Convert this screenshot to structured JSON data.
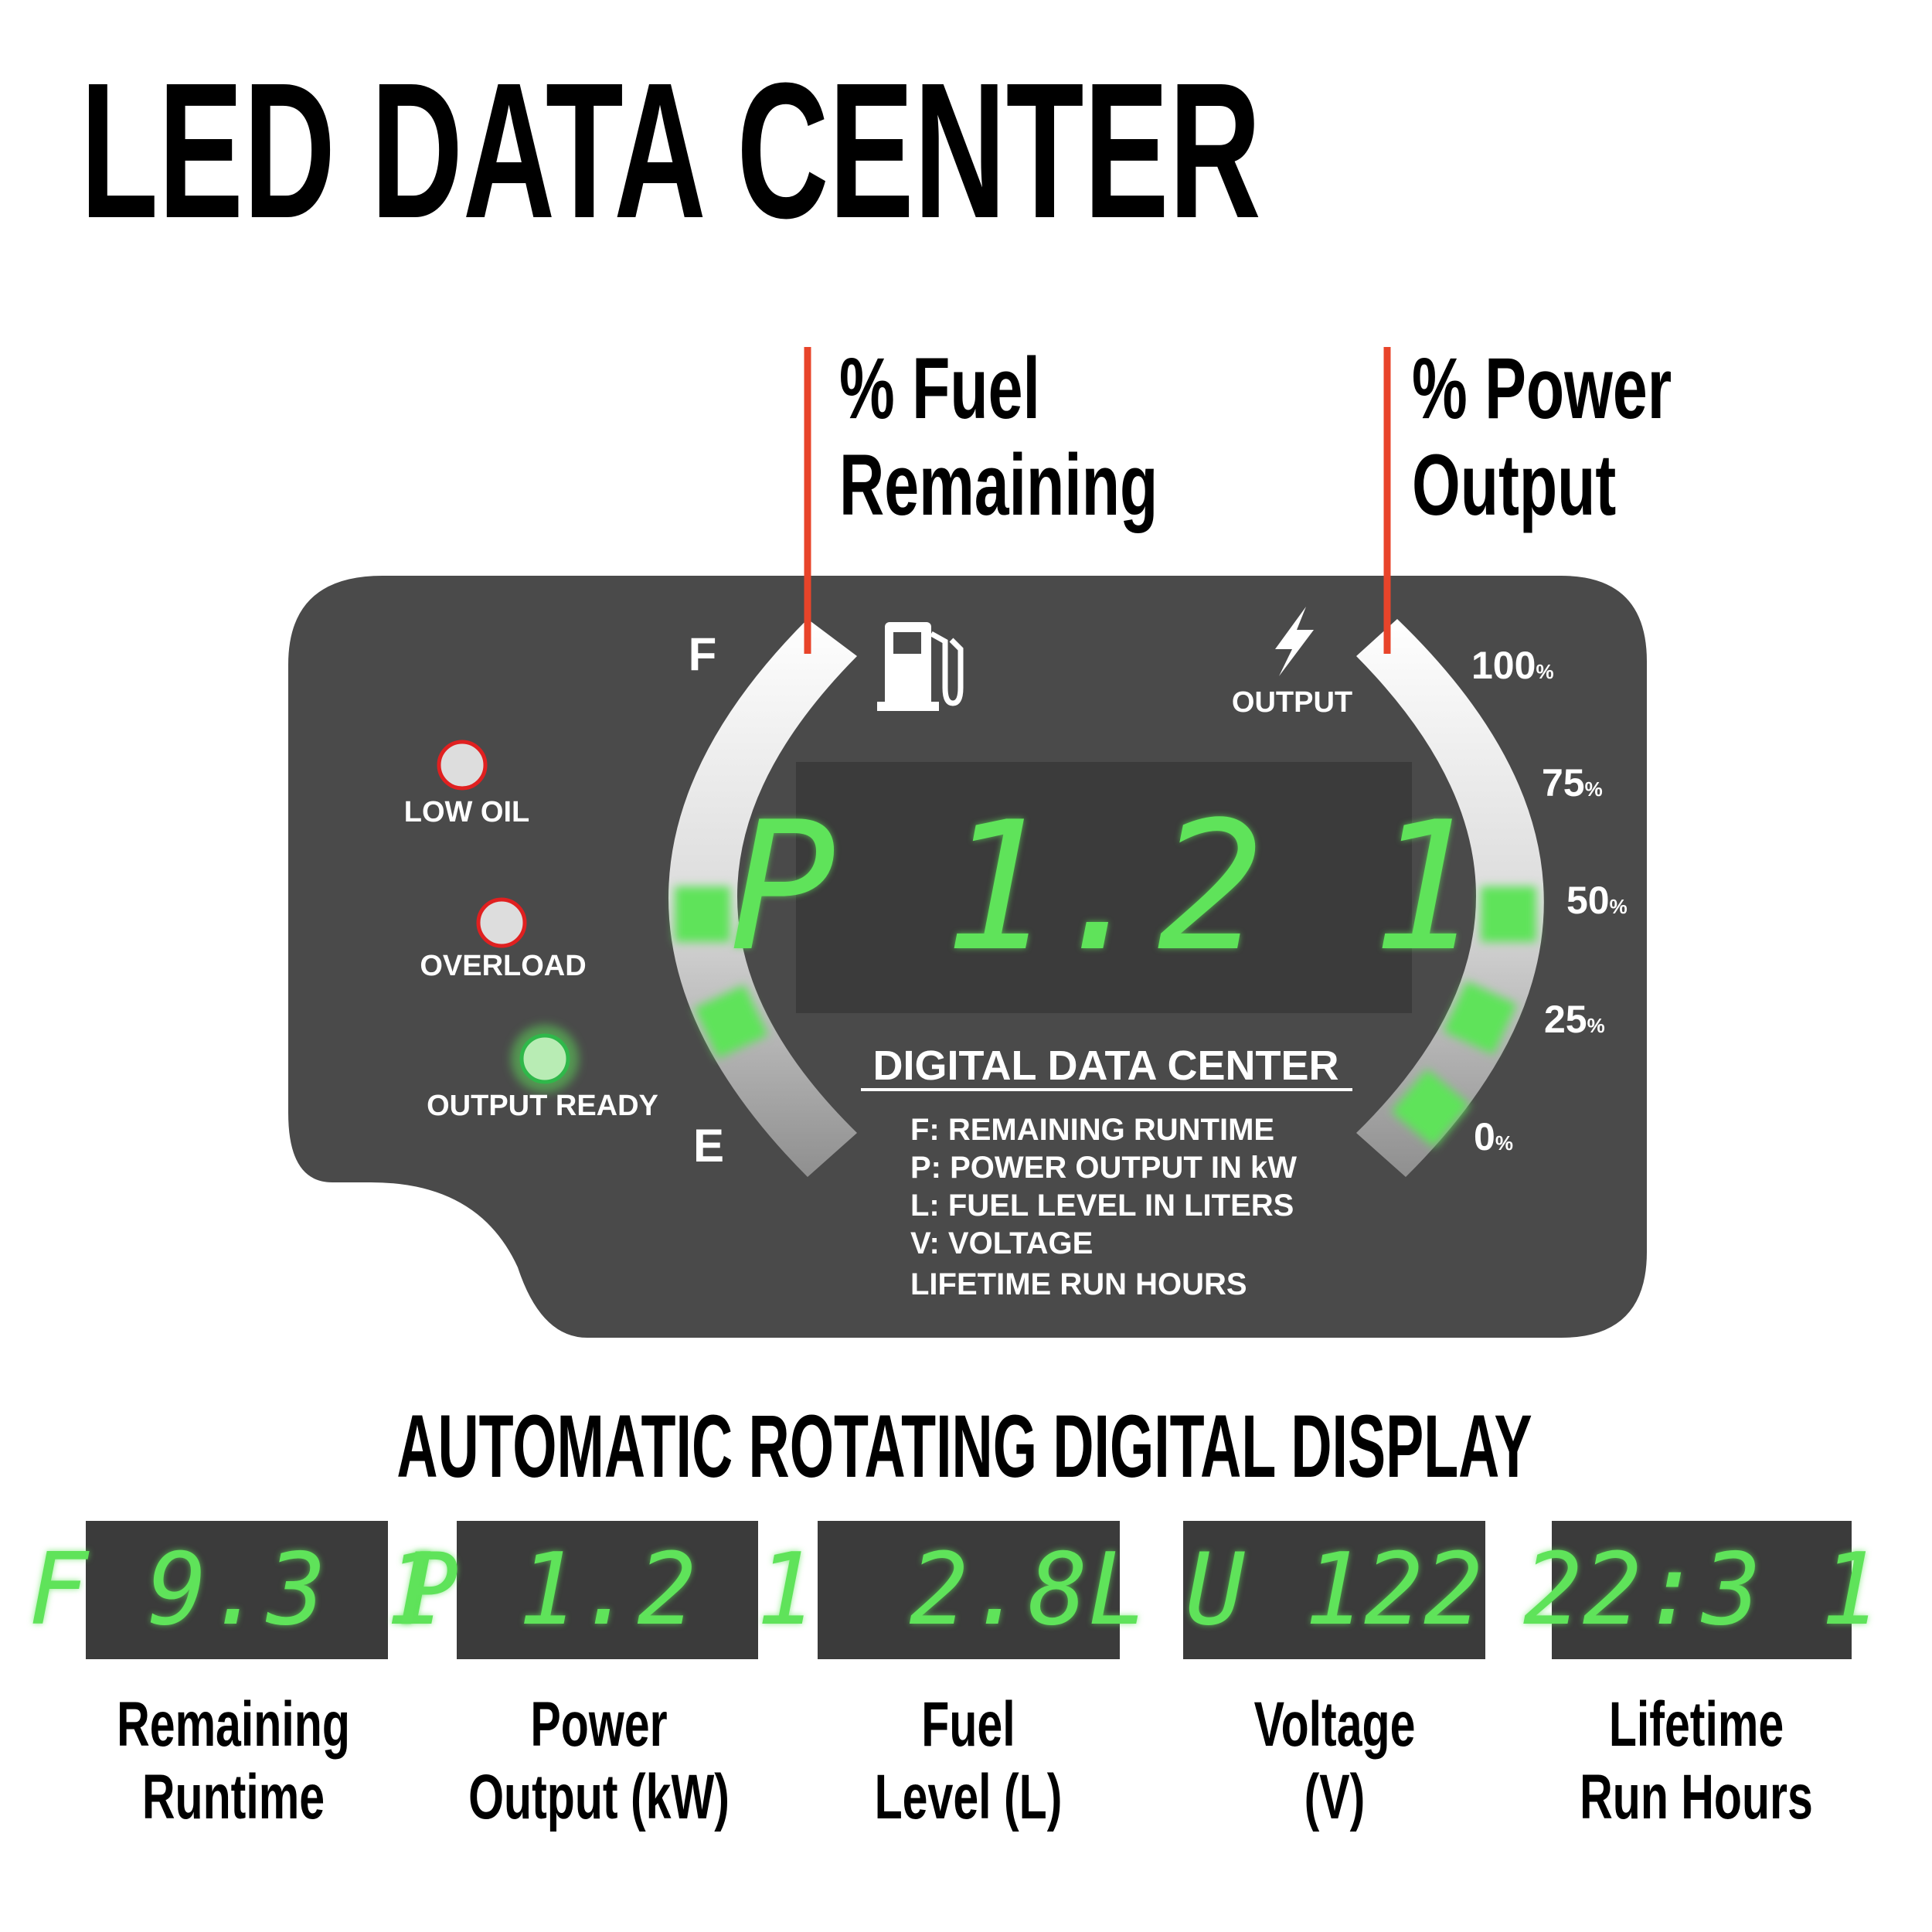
{
  "title": "LED DATA CENTER",
  "callouts": {
    "fuel": {
      "line1": "% Fuel",
      "line2": "Remaining"
    },
    "power": {
      "line1": "% Power",
      "line2": "Output"
    }
  },
  "panel": {
    "indicators": [
      {
        "label": "LOW OIL",
        "state": "off"
      },
      {
        "label": "OVERLOAD",
        "state": "off"
      },
      {
        "label": "OUTPUT READY",
        "state": "on"
      }
    ],
    "fuel_gauge": {
      "full_label": "F",
      "empty_label": "E",
      "icon": "fuel-pump-icon",
      "lit_segments": 2
    },
    "power_gauge": {
      "label": "OUTPUT",
      "icon": "lightning-bolt-icon",
      "lit_segments": 3,
      "scale": [
        "100",
        "75",
        "50",
        "25",
        "0"
      ],
      "unit": "%"
    },
    "display_value": "P 1.2 1",
    "heading": "DIGITAL DATA CENTER",
    "legend": [
      "F: REMAINING RUNTIME",
      "P: POWER OUTPUT IN kW",
      "L: FUEL LEVEL IN LITERS",
      "V: VOLTAGE",
      "LIFETIME RUN HOURS"
    ]
  },
  "rotating": {
    "heading": "AUTOMATIC ROTATING DIGITAL DISPLAY",
    "displays": [
      {
        "value": "F 9.3 1",
        "line1": "Remaining",
        "line2": "Runtime"
      },
      {
        "value": "P 1.2 1",
        "line1": "Power",
        "line2": "Output (kW)"
      },
      {
        "value": "  2.8L",
        "line1": "Fuel",
        "line2": "Level (L)"
      },
      {
        "value": "U 122",
        "line1": "Voltage",
        "line2": "(V)"
      },
      {
        "value": "22:3 1",
        "line1": "Lifetime",
        "line2": "Run Hours"
      }
    ]
  },
  "colors": {
    "panel": "#4a4a4a",
    "lcd": "#3b3b3b",
    "led_green": "#5fe35a",
    "callout_red": "#e8442a",
    "indicator_red": "#e02020"
  }
}
